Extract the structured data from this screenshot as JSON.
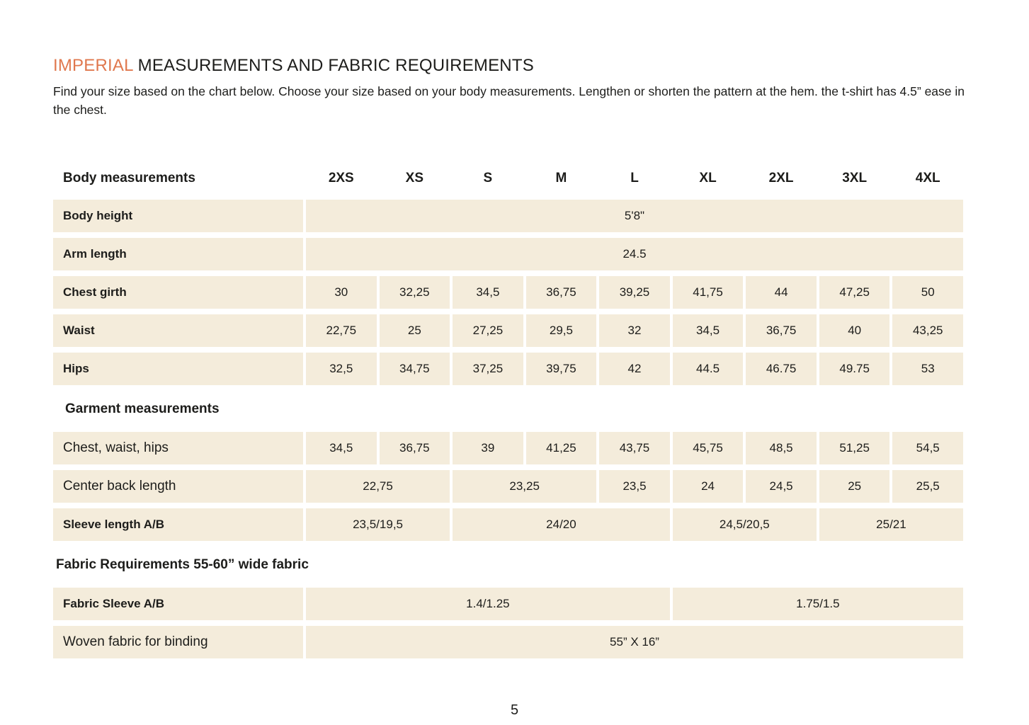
{
  "colors": {
    "accent": "#E0784E",
    "cell_bg": "#F4ECDB",
    "text": "#1D1D1B"
  },
  "header": {
    "title_accent": "IMPERIAL",
    "title_rest": "MEASUREMENTS AND FABRIC REQUIREMENTS",
    "intro_line": "Find your size based on the chart below. Choose your size based on your body measurements. Lengthen or shorten the pattern at the hem. the t-shirt has 4.5” ease in the chest."
  },
  "table": {
    "body_section_label": "Body measurements",
    "sizes": [
      "2XS",
      "XS",
      "S",
      "M",
      "L",
      "XL",
      "2XL",
      "3XL",
      "4XL"
    ],
    "body_rows": [
      {
        "label": "Body height",
        "style": "bold",
        "cells": [
          {
            "span": 9,
            "value": "5'8\""
          }
        ]
      },
      {
        "label": "Arm length",
        "style": "bold",
        "cells": [
          {
            "span": 9,
            "value": "24.5"
          }
        ]
      },
      {
        "label": "Chest girth",
        "style": "bold",
        "cells": [
          {
            "span": 1,
            "value": "30"
          },
          {
            "span": 1,
            "value": "32,25"
          },
          {
            "span": 1,
            "value": "34,5"
          },
          {
            "span": 1,
            "value": "36,75"
          },
          {
            "span": 1,
            "value": "39,25"
          },
          {
            "span": 1,
            "value": "41,75"
          },
          {
            "span": 1,
            "value": "44"
          },
          {
            "span": 1,
            "value": "47,25"
          },
          {
            "span": 1,
            "value": "50"
          }
        ]
      },
      {
        "label": "Waist",
        "style": "bold",
        "cells": [
          {
            "span": 1,
            "value": "22,75"
          },
          {
            "span": 1,
            "value": "25"
          },
          {
            "span": 1,
            "value": "27,25"
          },
          {
            "span": 1,
            "value": "29,5"
          },
          {
            "span": 1,
            "value": "32"
          },
          {
            "span": 1,
            "value": "34,5"
          },
          {
            "span": 1,
            "value": "36,75"
          },
          {
            "span": 1,
            "value": "40"
          },
          {
            "span": 1,
            "value": "43,25"
          }
        ]
      },
      {
        "label": "Hips",
        "style": "bold",
        "cells": [
          {
            "span": 1,
            "value": "32,5"
          },
          {
            "span": 1,
            "value": "34,75"
          },
          {
            "span": 1,
            "value": "37,25"
          },
          {
            "span": 1,
            "value": "39,75"
          },
          {
            "span": 1,
            "value": "42"
          },
          {
            "span": 1,
            "value": "44.5"
          },
          {
            "span": 1,
            "value": "46.75"
          },
          {
            "span": 1,
            "value": "49.75"
          },
          {
            "span": 1,
            "value": "53"
          }
        ]
      }
    ],
    "garment_section_label": "Garment measurements",
    "garment_rows": [
      {
        "label": "Chest, waist, hips",
        "style": "light",
        "cells": [
          {
            "span": 1,
            "value": "34,5"
          },
          {
            "span": 1,
            "value": "36,75"
          },
          {
            "span": 1,
            "value": "39"
          },
          {
            "span": 1,
            "value": "41,25"
          },
          {
            "span": 1,
            "value": "43,75"
          },
          {
            "span": 1,
            "value": "45,75"
          },
          {
            "span": 1,
            "value": "48,5"
          },
          {
            "span": 1,
            "value": "51,25"
          },
          {
            "span": 1,
            "value": "54,5"
          }
        ]
      },
      {
        "label": "Center back length",
        "style": "light",
        "cells": [
          {
            "span": 2,
            "value": "22,75"
          },
          {
            "span": 2,
            "value": "23,25"
          },
          {
            "span": 1,
            "value": "23,5"
          },
          {
            "span": 1,
            "value": "24"
          },
          {
            "span": 1,
            "value": "24,5"
          },
          {
            "span": 1,
            "value": "25"
          },
          {
            "span": 1,
            "value": "25,5"
          }
        ]
      },
      {
        "label": "Sleeve length A/B",
        "style": "bold",
        "cells": [
          {
            "span": 2,
            "value": "23,5/19,5"
          },
          {
            "span": 3,
            "value": "24/20"
          },
          {
            "span": 2,
            "value": "24,5/20,5"
          },
          {
            "span": 2,
            "value": "25/21"
          }
        ]
      }
    ],
    "fabric_section_label": "Fabric Requirements 55-60” wide fabric",
    "fabric_rows": [
      {
        "label": "Fabric Sleeve A/B",
        "style": "bold",
        "cells": [
          {
            "span": 5,
            "value": "1.4/1.25"
          },
          {
            "span": 4,
            "value": "1.75/1.5"
          }
        ]
      },
      {
        "label": "Woven fabric for binding",
        "style": "light",
        "cells": [
          {
            "span": 9,
            "value": "55” X 16”"
          }
        ]
      }
    ]
  },
  "footer": {
    "page_number": "5"
  }
}
